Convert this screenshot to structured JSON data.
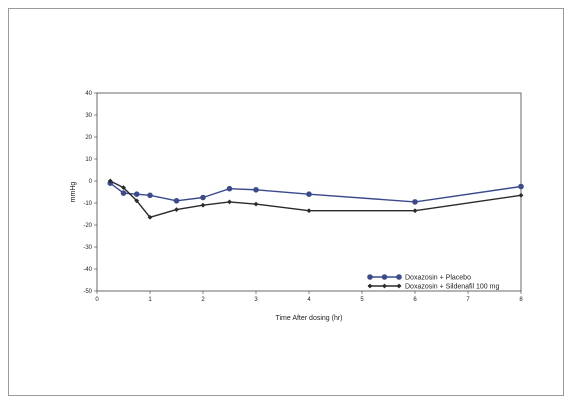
{
  "chart_data": {
    "type": "line",
    "xlabel": "Time After dosing (hr)",
    "ylabel": "mmHg",
    "xlim": [
      0,
      8
    ],
    "ylim": [
      -50,
      40
    ],
    "xticks": [
      "0",
      "1",
      "2",
      "3",
      "4",
      "5",
      "6",
      "7",
      "8"
    ],
    "yticks": [
      "40",
      "30",
      "20",
      "10",
      "0",
      "-10",
      "-20",
      "-30",
      "-40",
      "-50"
    ],
    "legend_position": "bottom-right",
    "series": [
      {
        "name": "Doxazosin + Placebo",
        "color": "#3b4a8c",
        "marker": "circle",
        "x": [
          0.25,
          0.5,
          0.75,
          1,
          1.5,
          2,
          2.5,
          3,
          4,
          6,
          8
        ],
        "y": [
          -1,
          -5.5,
          -6,
          -6.5,
          -9,
          -7.5,
          -3.5,
          -4,
          -6,
          -9.5,
          -2.5
        ]
      },
      {
        "name": "Doxazosin + Sildenafil 100 mg",
        "color": "#2a2a2a",
        "marker": "diamond",
        "x": [
          0.25,
          0.5,
          0.75,
          1,
          1.5,
          2,
          2.5,
          3,
          4,
          6,
          8
        ],
        "y": [
          0,
          -3,
          -9,
          -16.5,
          -13,
          -11,
          -9.5,
          -10.5,
          -13.5,
          -13.5,
          -6.5
        ]
      }
    ]
  }
}
